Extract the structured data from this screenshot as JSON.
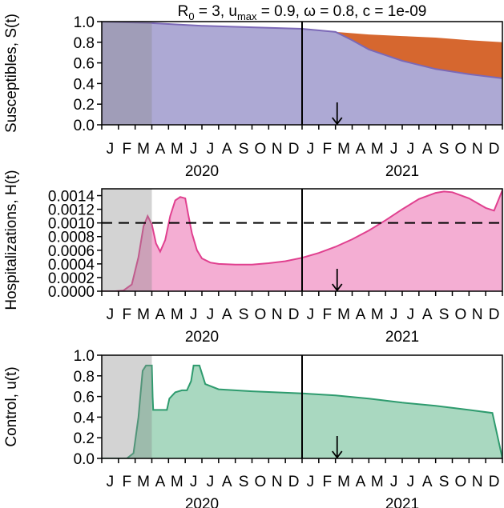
{
  "title": {
    "main": "R",
    "sub0": "0",
    "mid": " = 3, u",
    "submax": "max",
    "rest": " = 0.9, ω = 0.8, c = 1e-09"
  },
  "month_labels": [
    "J",
    "F",
    "M",
    "A",
    "M",
    "J",
    "J",
    "A",
    "S",
    "O",
    "N",
    "D",
    "J",
    "F",
    "M",
    "A",
    "M",
    "J",
    "J",
    "A",
    "S",
    "O",
    "N",
    "D"
  ],
  "year_labels": [
    "2020",
    "2021"
  ],
  "colors": {
    "susceptible_fill": "#ada9d4",
    "susceptible_line": "#7b68b6",
    "gap_fill": "#d6672f",
    "hosp_fill": "#f4aed3",
    "hosp_line": "#e0408f",
    "control_fill": "#a9d8c0",
    "control_line": "#2e9b6e",
    "shade": "#8c8c8c"
  },
  "chart_data": [
    {
      "type": "area",
      "ylabel": "Susceptibles, S(t)",
      "ylim": [
        0,
        1.0
      ],
      "yticks": [
        "0.0",
        "0.2",
        "0.4",
        "0.6",
        "0.8",
        "1.0"
      ],
      "ytick_values": [
        0,
        0.2,
        0.4,
        0.6,
        0.8,
        1.0
      ],
      "xlim_months": [
        0,
        24
      ],
      "shaded_until_month": 3.0,
      "vertical_line_month": 12,
      "arrow_month": 14.1,
      "series": [
        {
          "key": "upper",
          "x": [
            0,
            3,
            6,
            9,
            12,
            14,
            16,
            18,
            20,
            22,
            24
          ],
          "values": [
            1.0,
            0.985,
            0.96,
            0.945,
            0.93,
            0.9,
            0.875,
            0.86,
            0.845,
            0.82,
            0.8
          ]
        },
        {
          "key": "S",
          "x": [
            0,
            3,
            6,
            9,
            12,
            14,
            15,
            16,
            18,
            20,
            22,
            24
          ],
          "values": [
            1.0,
            0.985,
            0.96,
            0.945,
            0.93,
            0.9,
            0.82,
            0.73,
            0.62,
            0.54,
            0.49,
            0.45
          ]
        }
      ]
    },
    {
      "type": "area",
      "ylabel": "Hospitalizations, H(t)",
      "ylim": [
        0,
        0.0015
      ],
      "yticks": [
        "0.0000",
        "0.0002",
        "0.0004",
        "0.0006",
        "0.0008",
        "0.0010",
        "0.0012",
        "0.0014"
      ],
      "ytick_values": [
        0,
        0.0002,
        0.0004,
        0.0006,
        0.0008,
        0.001,
        0.0012,
        0.0014
      ],
      "threshold": 0.001,
      "xlim_months": [
        0,
        24
      ],
      "shaded_until_month": 3.0,
      "vertical_line_month": 12,
      "arrow_month": 14.1,
      "series": [
        {
          "key": "H",
          "x": [
            0,
            0.8,
            1.3,
            1.8,
            2.2,
            2.5,
            2.75,
            3.0,
            3.25,
            3.5,
            3.8,
            4.1,
            4.4,
            4.7,
            5.0,
            5.2,
            5.4,
            5.7,
            6.0,
            6.5,
            7.0,
            8.0,
            9.0,
            10.0,
            11.0,
            12.0,
            13.0,
            14.0,
            15.0,
            16.0,
            17.0,
            18.0,
            19.0,
            20.0,
            20.5,
            21.0,
            22.0,
            23.0,
            23.5,
            24.0
          ],
          "values": [
            0,
            0,
            1e-05,
            0.0001,
            0.0005,
            0.00095,
            0.0011,
            0.00098,
            0.0007,
            0.00058,
            0.00075,
            0.0011,
            0.00133,
            0.00138,
            0.00136,
            0.0011,
            0.00085,
            0.0006,
            0.00048,
            0.00042,
            0.0004,
            0.00039,
            0.00039,
            0.00041,
            0.00044,
            0.00049,
            0.00056,
            0.00065,
            0.00076,
            0.00089,
            0.00104,
            0.0012,
            0.00135,
            0.00144,
            0.00146,
            0.00145,
            0.00136,
            0.00122,
            0.00118,
            0.00148
          ]
        }
      ]
    },
    {
      "type": "area",
      "ylabel": "Control, u(t)",
      "ylim": [
        0,
        1.0
      ],
      "yticks": [
        "0.0",
        "0.2",
        "0.4",
        "0.6",
        "0.8",
        "1.0"
      ],
      "ytick_values": [
        0,
        0.2,
        0.4,
        0.6,
        0.8,
        1.0
      ],
      "xlim_months": [
        0,
        24
      ],
      "shaded_until_month": 3.0,
      "vertical_line_month": 12,
      "arrow_month": 14.1,
      "series": [
        {
          "key": "u",
          "x": [
            0,
            1.5,
            1.9,
            2.2,
            2.45,
            2.65,
            3.0,
            3.05,
            3.08,
            3.9,
            4.05,
            4.4,
            4.8,
            5.1,
            5.35,
            5.5,
            5.85,
            6.2,
            7.0,
            9.0,
            12.0,
            14.0,
            16.0,
            18.0,
            20.0,
            22.0,
            23.4,
            24.0
          ],
          "values": [
            0,
            0,
            0.05,
            0.4,
            0.85,
            0.9,
            0.9,
            0.6,
            0.47,
            0.47,
            0.58,
            0.64,
            0.66,
            0.66,
            0.75,
            0.9,
            0.9,
            0.72,
            0.67,
            0.65,
            0.63,
            0.61,
            0.58,
            0.54,
            0.51,
            0.47,
            0.44,
            0.0
          ]
        }
      ]
    }
  ]
}
